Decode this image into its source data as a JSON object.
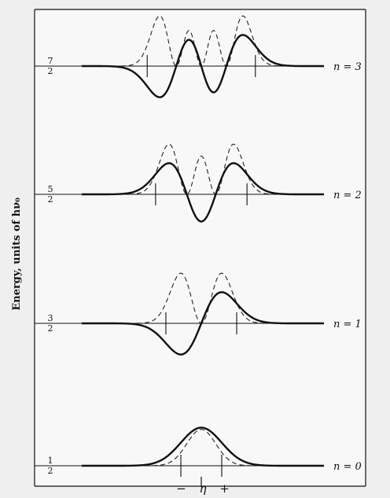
{
  "figure": {
    "ylabel": "Energy, units of hν₀",
    "xlabel_minus": "−",
    "xlabel_symbol": "η",
    "xlabel_plus": "+"
  },
  "chart_data": {
    "type": "line",
    "xlabel": "η",
    "ylabel": "Energy, units of hν₀",
    "levels": [
      {
        "n": 0,
        "label": "n = 0",
        "energy_label": "1/2",
        "energy": 0.5
      },
      {
        "n": 1,
        "label": "n = 1",
        "energy_label": "3/2",
        "energy": 1.5
      },
      {
        "n": 2,
        "label": "n = 2",
        "energy_label": "5/2",
        "energy": 2.5
      },
      {
        "n": 3,
        "label": "n = 3",
        "energy_label": "7/2",
        "energy": 3.5
      }
    ],
    "series": [
      {
        "style": "solid-bold",
        "description_from_figure": "ψ"
      },
      {
        "style": "dashed",
        "description_from_figure": "ψ²"
      }
    ],
    "grid": false
  }
}
